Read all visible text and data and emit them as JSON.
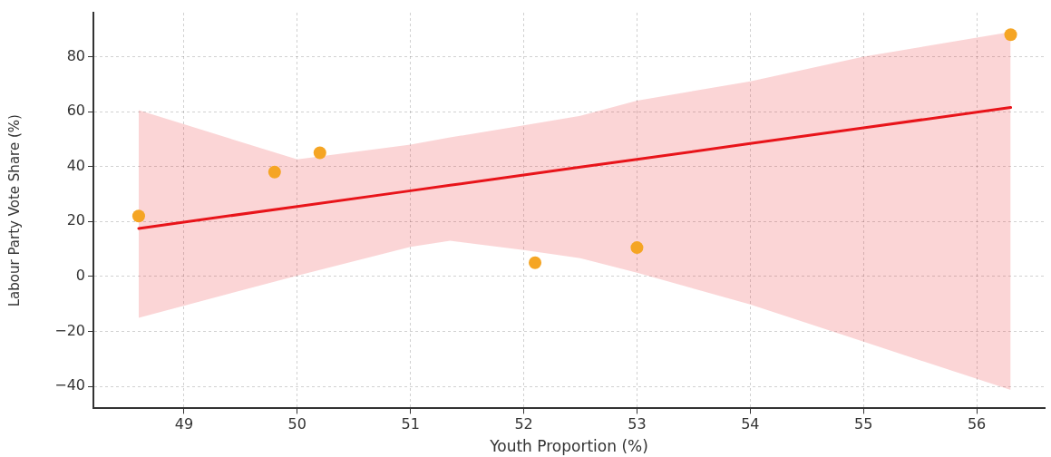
{
  "chart_data": {
    "type": "scatter",
    "xlabel": "Youth Proportion (%)",
    "ylabel": "Labour Party Vote Share (%)",
    "xlim": [
      48.2,
      56.6
    ],
    "xticks": [
      49,
      50,
      51,
      52,
      53,
      54,
      55,
      56
    ],
    "ylim": [
      -48,
      96
    ],
    "yticks": [
      -40,
      -20,
      0,
      20,
      40,
      60,
      80
    ],
    "grid": true,
    "legend": false,
    "marker": "circle",
    "series": [
      {
        "color": "#f5a524",
        "x": [
          48.6,
          49.8,
          50.2,
          52.1,
          53.0,
          56.3
        ],
        "values": [
          22,
          38,
          45,
          5,
          10.5,
          88
        ]
      },
      {
        "type": "line",
        "color": "#e8141a",
        "line_style": "solid",
        "marker": "none",
        "x": [
          48.6,
          50,
          51,
          51.35,
          52,
          52.5,
          53,
          54,
          55,
          56.3
        ],
        "values": [
          17.5,
          25.5,
          31.2,
          33.2,
          36.9,
          39.8,
          42.6,
          48.4,
          54.1,
          61.5
        ],
        "lower": [
          -15,
          0.3,
          10.8,
          13,
          9.6,
          6.7,
          1.4,
          -10.2,
          -23.7,
          -41.3
        ],
        "upper": [
          60.5,
          42.6,
          48,
          50.6,
          55,
          58.5,
          64,
          71,
          80,
          89
        ]
      }
    ]
  }
}
